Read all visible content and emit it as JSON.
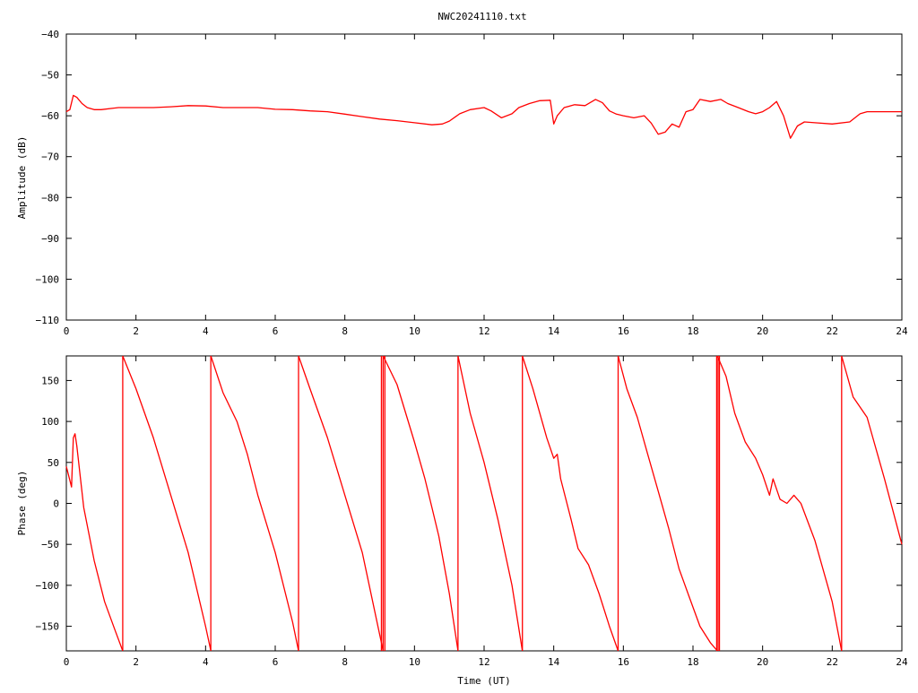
{
  "title": "NWC20241110.txt",
  "colors": {
    "trace": "#ff0000",
    "axes": "#000000",
    "background": "#ffffff"
  },
  "chart_data": [
    {
      "type": "line",
      "name": "amplitude",
      "xlabel": "",
      "ylabel": "Amplitude (dB)",
      "xlim": [
        0,
        24
      ],
      "ylim": [
        -110,
        -40
      ],
      "xticks": [
        0,
        2,
        4,
        6,
        8,
        10,
        12,
        14,
        16,
        18,
        20,
        22,
        24
      ],
      "yticks": [
        -40,
        -50,
        -60,
        -70,
        -80,
        -90,
        -100,
        -110
      ],
      "xtick_labels": [
        "0",
        "2",
        "4",
        "6",
        "8",
        "10",
        "12",
        "14",
        "16",
        "18",
        "20",
        "22",
        "24"
      ],
      "ytick_labels": [
        "−40",
        "−50",
        "−60",
        "−70",
        "−80",
        "−90",
        "−100",
        "−110"
      ],
      "grid": false,
      "x": [
        0.0,
        0.1,
        0.2,
        0.3,
        0.45,
        0.6,
        0.8,
        1.0,
        1.5,
        2.0,
        2.5,
        3.0,
        3.5,
        4.0,
        4.5,
        5.0,
        5.5,
        6.0,
        6.5,
        7.0,
        7.5,
        8.0,
        8.5,
        9.0,
        9.5,
        10.0,
        10.5,
        10.8,
        11.0,
        11.3,
        11.6,
        12.0,
        12.2,
        12.5,
        12.8,
        13.0,
        13.3,
        13.6,
        13.9,
        14.0,
        14.1,
        14.3,
        14.6,
        14.9,
        15.2,
        15.4,
        15.6,
        15.8,
        16.0,
        16.3,
        16.6,
        16.8,
        17.0,
        17.2,
        17.4,
        17.6,
        17.8,
        18.0,
        18.2,
        18.5,
        18.8,
        19.0,
        19.3,
        19.6,
        19.8,
        20.0,
        20.2,
        20.4,
        20.6,
        20.8,
        21.0,
        21.2,
        21.5,
        22.0,
        22.5,
        22.8,
        23.0,
        23.5,
        24.0
      ],
      "y": [
        -59,
        -58.5,
        -55,
        -55.5,
        -57,
        -58,
        -58.5,
        -58.5,
        -58,
        -58,
        -58,
        -57.8,
        -57.5,
        -57.6,
        -58,
        -58,
        -58,
        -58.4,
        -58.5,
        -58.8,
        -59,
        -59.6,
        -60.2,
        -60.8,
        -61.2,
        -61.7,
        -62.2,
        -62,
        -61.3,
        -59.5,
        -58.5,
        -58,
        -58.8,
        -60.5,
        -59.5,
        -58,
        -57,
        -56.3,
        -56.2,
        -62,
        -60,
        -58,
        -57.3,
        -57.5,
        -56,
        -56.8,
        -58.8,
        -59.6,
        -60,
        -60.5,
        -60,
        -61.8,
        -64.5,
        -64,
        -62,
        -62.8,
        -59,
        -58.5,
        -56,
        -56.5,
        -56,
        -57,
        -58,
        -59,
        -59.5,
        -59,
        -58,
        -56.5,
        -60,
        -65.5,
        -62.5,
        -61.5,
        -61.7,
        -62,
        -61.5,
        -59.5,
        -59,
        -59,
        -59
      ]
    },
    {
      "type": "line",
      "name": "phase",
      "xlabel": "Time (UT)",
      "ylabel": "Phase (deg)",
      "xlim": [
        0,
        24
      ],
      "ylim": [
        -180,
        180
      ],
      "xticks": [
        0,
        2,
        4,
        6,
        8,
        10,
        12,
        14,
        16,
        18,
        20,
        22,
        24
      ],
      "yticks": [
        150,
        100,
        50,
        0,
        -50,
        -100,
        -150
      ],
      "xtick_labels": [
        "0",
        "2",
        "4",
        "6",
        "8",
        "10",
        "12",
        "14",
        "16",
        "18",
        "20",
        "22",
        "24"
      ],
      "ytick_labels": [
        "150",
        "100",
        "50",
        "0",
        "−50",
        "−100",
        "−150"
      ],
      "grid": false,
      "segments": [
        {
          "x": [
            0.0,
            0.15,
            0.2,
            0.25,
            0.3,
            0.5,
            0.8,
            1.1,
            1.4,
            1.62
          ],
          "y": [
            45,
            20,
            80,
            85,
            70,
            -5,
            -70,
            -120,
            -155,
            -180
          ]
        },
        {
          "x": [
            1.62,
            2.0,
            2.5,
            3.0,
            3.5,
            4.0,
            4.15
          ],
          "y": [
            180,
            140,
            80,
            10,
            -60,
            -150,
            -180
          ]
        },
        {
          "x": [
            4.15,
            4.5,
            4.9,
            5.2,
            5.5,
            6.0,
            6.5,
            6.67
          ],
          "y": [
            180,
            135,
            100,
            60,
            10,
            -60,
            -145,
            -180
          ]
        },
        {
          "x": [
            6.67,
            7.0,
            7.5,
            8.0,
            8.5,
            9.0,
            9.1
          ],
          "y": [
            180,
            140,
            80,
            10,
            -60,
            -160,
            -180
          ]
        },
        {
          "x": [
            9.1,
            9.5,
            10.0,
            10.3,
            10.5,
            10.7,
            11.0,
            11.25
          ],
          "y": [
            180,
            145,
            75,
            30,
            -5,
            -40,
            -110,
            -180
          ]
        },
        {
          "x": [
            11.25,
            11.6,
            12.0,
            12.4,
            12.8,
            13.1
          ],
          "y": [
            180,
            110,
            50,
            -20,
            -100,
            -180
          ]
        },
        {
          "x": [
            13.1,
            13.4,
            13.8,
            14.0,
            14.1,
            14.2,
            14.5,
            14.7,
            15.0,
            15.3,
            15.6,
            15.85
          ],
          "y": [
            180,
            140,
            80,
            55,
            60,
            30,
            -20,
            -55,
            -75,
            -110,
            -150,
            -180
          ]
        },
        {
          "x": [
            15.85,
            16.1,
            16.4,
            16.7,
            17.0,
            17.3,
            17.6,
            17.9,
            18.2,
            18.5,
            18.7
          ],
          "y": [
            180,
            140,
            105,
            60,
            15,
            -30,
            -80,
            -115,
            -150,
            -170,
            -180
          ]
        },
        {
          "x": [
            18.7,
            18.95,
            19.2,
            19.5,
            19.8,
            20.0,
            20.2,
            20.3,
            20.5,
            20.7,
            20.9,
            21.1,
            21.5,
            22.0,
            22.27
          ],
          "y": [
            180,
            155,
            110,
            75,
            55,
            35,
            10,
            30,
            5,
            0,
            10,
            0,
            -45,
            -120,
            -180
          ]
        },
        {
          "x": [
            22.27,
            22.6,
            23.0,
            23.5,
            24.0
          ],
          "y": [
            180,
            130,
            105,
            30,
            -50
          ]
        }
      ],
      "wraps": [
        1.62,
        4.15,
        6.67,
        9.05,
        9.1,
        9.15,
        11.25,
        13.1,
        15.85,
        18.68,
        18.72,
        18.76,
        22.27
      ]
    }
  ]
}
